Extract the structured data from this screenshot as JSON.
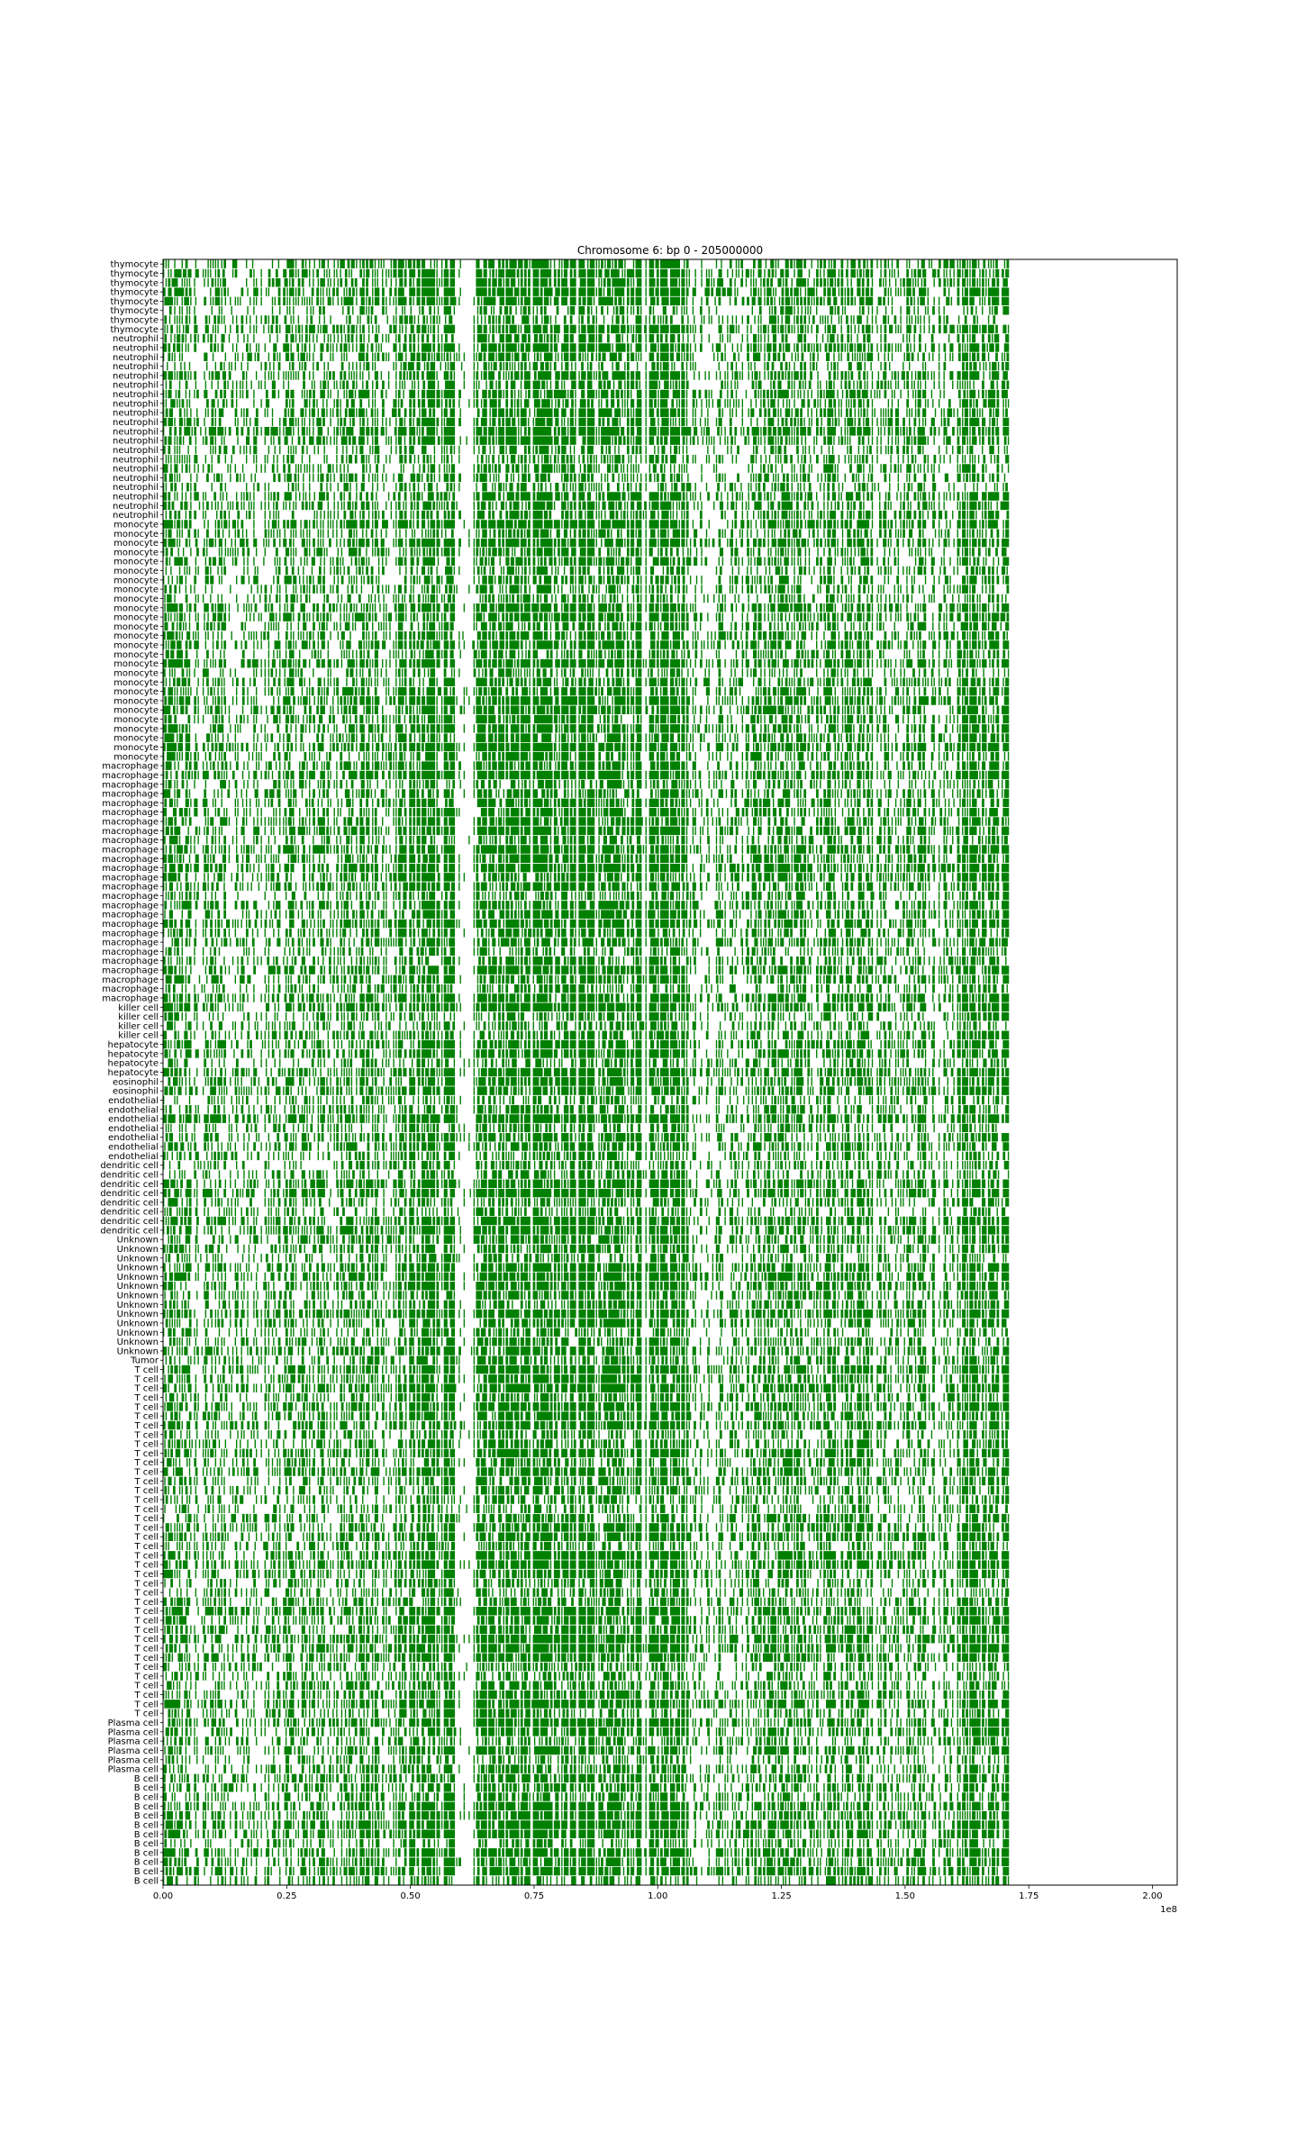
{
  "chart_data": {
    "type": "heatmap",
    "title": "Chromosome 6: bp 0 - 205000000",
    "xlim": [
      0,
      205000000
    ],
    "x_offset_label": "1e8",
    "xticks": [
      {
        "value": 0,
        "label": "0.00"
      },
      {
        "value": 25000000,
        "label": "0.25"
      },
      {
        "value": 50000000,
        "label": "0.50"
      },
      {
        "value": 75000000,
        "label": "0.75"
      },
      {
        "value": 100000000,
        "label": "1.00"
      },
      {
        "value": 125000000,
        "label": "1.25"
      },
      {
        "value": 150000000,
        "label": "1.50"
      },
      {
        "value": 175000000,
        "label": "1.75"
      },
      {
        "value": 200000000,
        "label": "2.00"
      }
    ],
    "data_end_bp": 171000000,
    "color": "#008000",
    "row_groups": [
      {
        "label": "thymocyte",
        "count": 8
      },
      {
        "label": "neutrophil",
        "count": 20
      },
      {
        "label": "monocyte",
        "count": 26
      },
      {
        "label": "macrophage",
        "count": 26
      },
      {
        "label": "killer cell",
        "count": 4
      },
      {
        "label": "hepatocyte",
        "count": 4
      },
      {
        "label": "eosinophil",
        "count": 2
      },
      {
        "label": "endothelial",
        "count": 7
      },
      {
        "label": "dendritic cell",
        "count": 8
      },
      {
        "label": "Unknown",
        "count": 13
      },
      {
        "label": "Tumor",
        "count": 1
      },
      {
        "label": "T cell",
        "count": 38
      },
      {
        "label": "Plasma cell",
        "count": 6
      },
      {
        "label": "B cell",
        "count": 12
      }
    ],
    "coverage_profile": [
      {
        "start": 0,
        "end": 3000000,
        "density": 0.55
      },
      {
        "start": 3000000,
        "end": 13000000,
        "density": 0.45
      },
      {
        "start": 13000000,
        "end": 22000000,
        "density": 0.35
      },
      {
        "start": 22000000,
        "end": 38000000,
        "density": 0.5
      },
      {
        "start": 38000000,
        "end": 47000000,
        "density": 0.55
      },
      {
        "start": 47000000,
        "end": 59000000,
        "density": 0.8
      },
      {
        "start": 59000000,
        "end": 62000000,
        "density": 0.05
      },
      {
        "start": 62000000,
        "end": 92000000,
        "density": 0.82
      },
      {
        "start": 92000000,
        "end": 106000000,
        "density": 0.92
      },
      {
        "start": 106000000,
        "end": 118000000,
        "density": 0.35
      },
      {
        "start": 118000000,
        "end": 145000000,
        "density": 0.6
      },
      {
        "start": 145000000,
        "end": 160000000,
        "density": 0.5
      },
      {
        "start": 160000000,
        "end": 171000000,
        "density": 0.75
      }
    ]
  }
}
